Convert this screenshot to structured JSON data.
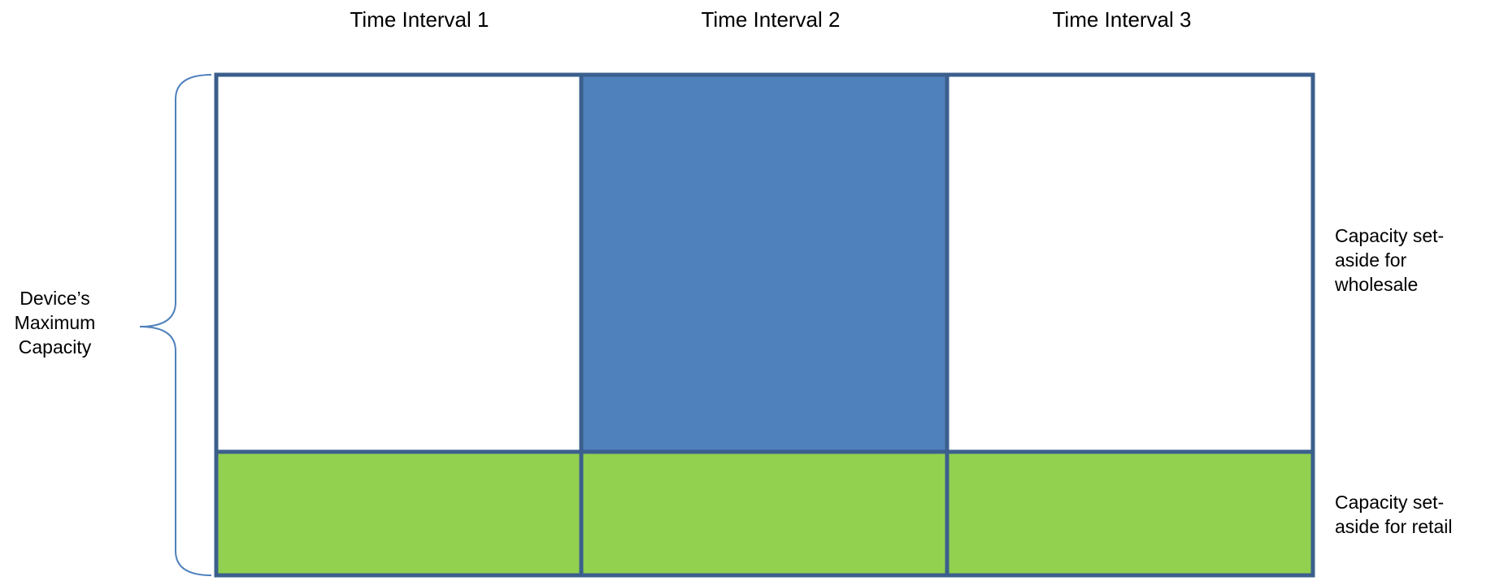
{
  "intervals": [
    {
      "label": "Time Interval 1",
      "wholesale_set_aside": false
    },
    {
      "label": "Time Interval 2",
      "wholesale_set_aside": true
    },
    {
      "label": "Time Interval 3",
      "wholesale_set_aside": false
    }
  ],
  "capacity_label": "Device’s\nMaximum\nCapacity",
  "legend": {
    "wholesale": "Capacity set-\naside for\nwholesale",
    "retail": "Capacity set-\naside for retail"
  },
  "colors": {
    "outline": "#3b5f8d",
    "wholesale_fill": "#4f81bd",
    "retail_fill": "#92d050",
    "empty_fill": "#ffffff",
    "brace": "#4f81bd"
  }
}
